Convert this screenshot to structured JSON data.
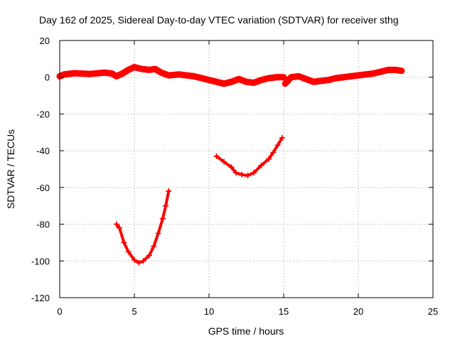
{
  "chart_data": {
    "type": "scatter",
    "title": "Day 162 of 2025, Sidereal Day-to-day VTEC variation (SDTVAR) for receiver sthg",
    "xlabel": "GPS time / hours",
    "ylabel": "SDTVAR / TECUs",
    "xlim": [
      0,
      25
    ],
    "ylim": [
      -120,
      20
    ],
    "xticks": [
      0,
      5,
      10,
      15,
      20,
      25
    ],
    "yticks": [
      20,
      0,
      -20,
      -40,
      -60,
      -80,
      -100,
      -120
    ],
    "xtick_labels": [
      "0",
      "5",
      "10",
      "15",
      "20",
      "25"
    ],
    "ytick_labels": [
      "20",
      "0",
      "-20",
      "-40",
      "-60",
      "-80",
      "-100",
      "-120"
    ],
    "grid": true,
    "legend": "none",
    "color": "#ff0000",
    "series": [
      {
        "name": "near-zero trace",
        "band": 3.5,
        "points": [
          [
            0.0,
            0.5
          ],
          [
            0.3,
            1.5
          ],
          [
            1.0,
            2.2
          ],
          [
            2.0,
            1.8
          ],
          [
            3.0,
            2.5
          ],
          [
            3.5,
            2.0
          ],
          [
            3.8,
            0.5
          ],
          [
            4.2,
            2.0
          ],
          [
            4.6,
            4.0
          ],
          [
            5.0,
            5.5
          ],
          [
            5.5,
            4.5
          ],
          [
            6.0,
            4.0
          ],
          [
            6.4,
            4.5
          ],
          [
            6.8,
            2.5
          ],
          [
            7.3,
            1.0
          ],
          [
            8.0,
            1.5
          ],
          [
            8.5,
            1.0
          ],
          [
            9.0,
            0.5
          ],
          [
            9.5,
            -0.5
          ],
          [
            10.0,
            -1.5
          ],
          [
            10.5,
            -2.5
          ],
          [
            11.0,
            -3.5
          ],
          [
            11.5,
            -2.5
          ],
          [
            12.0,
            -1.0
          ],
          [
            12.5,
            -2.5
          ],
          [
            13.0,
            -3.0
          ],
          [
            13.5,
            -1.5
          ],
          [
            14.0,
            -0.5
          ],
          [
            14.5,
            0.0
          ],
          [
            15.0,
            0.0
          ]
        ]
      },
      {
        "name": "near-zero trace (late)",
        "band": 3.5,
        "points": [
          [
            15.1,
            -3.5
          ],
          [
            15.5,
            0.0
          ],
          [
            16.0,
            0.5
          ],
          [
            16.5,
            -1.0
          ],
          [
            17.0,
            -2.5
          ],
          [
            17.5,
            -2.0
          ],
          [
            18.0,
            -1.5
          ],
          [
            18.5,
            -0.5
          ],
          [
            19.0,
            0.0
          ],
          [
            19.5,
            0.5
          ],
          [
            20.0,
            1.0
          ],
          [
            20.5,
            1.5
          ],
          [
            21.0,
            2.0
          ],
          [
            21.5,
            3.0
          ],
          [
            22.0,
            4.0
          ],
          [
            22.5,
            4.0
          ],
          [
            22.9,
            3.5
          ]
        ]
      },
      {
        "name": "arc A",
        "band": 1.5,
        "points": [
          [
            3.8,
            -80
          ],
          [
            4.0,
            -82
          ],
          [
            4.3,
            -90
          ],
          [
            4.6,
            -95
          ],
          [
            5.0,
            -99.5
          ],
          [
            5.3,
            -101
          ],
          [
            5.6,
            -100
          ],
          [
            6.0,
            -97
          ],
          [
            6.3,
            -92
          ],
          [
            6.6,
            -85
          ],
          [
            6.9,
            -77
          ],
          [
            7.1,
            -70
          ],
          [
            7.3,
            -62
          ]
        ]
      },
      {
        "name": "arc B",
        "band": 1.5,
        "points": [
          [
            10.5,
            -43
          ],
          [
            11.0,
            -46
          ],
          [
            11.5,
            -49
          ],
          [
            11.8,
            -52
          ],
          [
            12.2,
            -53
          ],
          [
            12.6,
            -53.5
          ],
          [
            13.0,
            -52
          ],
          [
            13.5,
            -48
          ],
          [
            14.0,
            -44.5
          ],
          [
            14.3,
            -41
          ],
          [
            14.6,
            -37
          ],
          [
            14.9,
            -33
          ]
        ]
      }
    ]
  }
}
